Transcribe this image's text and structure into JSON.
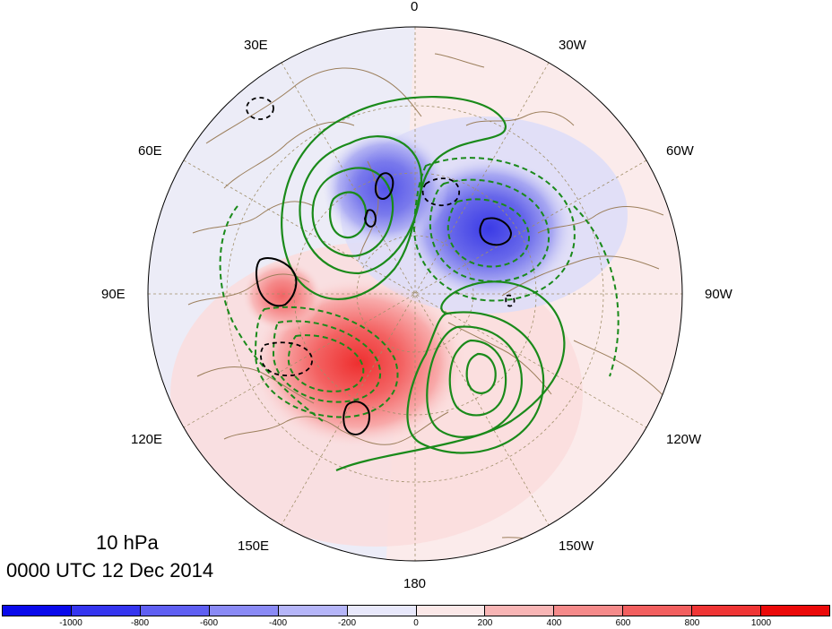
{
  "title": {
    "level": "10 hPa",
    "time": "0000 UTC 12 Dec 2014"
  },
  "map": {
    "projection": "north-polar-stereographic",
    "longitude_labels": [
      "0",
      "30W",
      "60W",
      "90W",
      "120W",
      "150W",
      "180",
      "150E",
      "120E",
      "90E",
      "60E",
      "30E"
    ],
    "colors": {
      "positive_contour": "#1a8a1a",
      "negative_contour": "#1a8a1a",
      "zero_contour": "#000000",
      "coastline": "#9c7f5c",
      "graticule": "#a08f6a"
    }
  },
  "colorbar": {
    "tick_labels": [
      "-1000",
      "-800",
      "-600",
      "-400",
      "-200",
      "0",
      "200",
      "400",
      "600",
      "800",
      "1000"
    ],
    "colors": [
      "#0a0aeb",
      "#3535ef",
      "#5f5ff2",
      "#8a8af5",
      "#b5b5f8",
      "#e8e8fb",
      "#fbe8e8",
      "#f8b5b5",
      "#f58a8a",
      "#f25f5f",
      "#ef3535",
      "#eb0a0a"
    ]
  }
}
